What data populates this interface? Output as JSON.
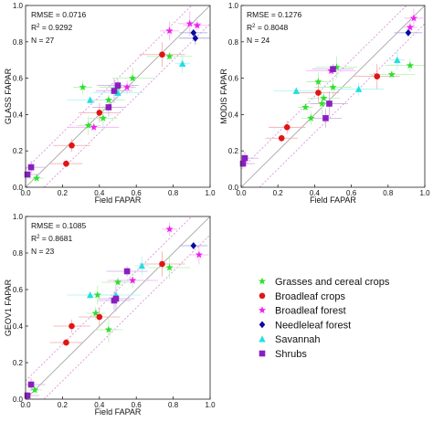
{
  "legend": [
    {
      "label": "Grasses and cereal crops",
      "color": "#2ee02e",
      "marker": "star"
    },
    {
      "label": "Broadleaf crops",
      "color": "#e01515",
      "marker": "circle"
    },
    {
      "label": "Broadleaf forest",
      "color": "#ee22ee",
      "marker": "star"
    },
    {
      "label": "Needleleaf forest",
      "color": "#0a0a9e",
      "marker": "diamond"
    },
    {
      "label": "Savannah",
      "color": "#20e0e0",
      "marker": "triangle"
    },
    {
      "label": "Shrubs",
      "color": "#8a1fbf",
      "marker": "square"
    }
  ],
  "chart_data": [
    {
      "type": "scatter",
      "xlabel": "Field  FAPAR",
      "ylabel": "GLASS  FAPAR",
      "xlim": [
        0,
        1
      ],
      "ylim": [
        0,
        1
      ],
      "xticks": [
        "0.0",
        "0.2",
        "0.4",
        "0.6",
        "0.8",
        "1.0"
      ],
      "yticks": [
        "0.0",
        "0.2",
        "0.4",
        "0.6",
        "0.8",
        "1.0"
      ],
      "stats": {
        "rmse": "RMSE = 0.0716",
        "r2_prefix": "R",
        "r2_value": "= 0.9292",
        "n": "N = 27"
      },
      "series": [
        {
          "name": "Grasses and cereal crops",
          "points": [
            [
              0.06,
              0.05
            ],
            [
              0.31,
              0.55
            ],
            [
              0.34,
              0.34
            ],
            [
              0.42,
              0.38
            ],
            [
              0.45,
              0.48
            ],
            [
              0.5,
              0.55
            ],
            [
              0.58,
              0.6
            ],
            [
              0.78,
              0.72
            ]
          ]
        },
        {
          "name": "Broadleaf crops",
          "points": [
            [
              0.22,
              0.13
            ],
            [
              0.25,
              0.23
            ],
            [
              0.4,
              0.41
            ],
            [
              0.74,
              0.73
            ]
          ]
        },
        {
          "name": "Broadleaf forest",
          "points": [
            [
              0.37,
              0.33
            ],
            [
              0.55,
              0.55
            ],
            [
              0.78,
              0.86
            ],
            [
              0.89,
              0.9
            ],
            [
              0.93,
              0.89
            ]
          ]
        },
        {
          "name": "Needleleaf forest",
          "points": [
            [
              0.91,
              0.85
            ],
            [
              0.92,
              0.82
            ]
          ]
        },
        {
          "name": "Savannah",
          "points": [
            [
              0.35,
              0.48
            ],
            [
              0.5,
              0.52
            ],
            [
              0.85,
              0.68
            ]
          ]
        },
        {
          "name": "Shrubs",
          "points": [
            [
              0.01,
              0.07
            ],
            [
              0.03,
              0.11
            ],
            [
              0.45,
              0.44
            ],
            [
              0.48,
              0.53
            ],
            [
              0.5,
              0.56
            ]
          ]
        }
      ]
    },
    {
      "type": "scatter",
      "xlabel": "Field  FAPAR",
      "ylabel": "MODIS  FAPAR",
      "xlim": [
        0,
        1
      ],
      "ylim": [
        0,
        1
      ],
      "xticks": [
        "0.0",
        "0.2",
        "0.4",
        "0.6",
        "0.8",
        "1.0"
      ],
      "yticks": [
        "0.0",
        "0.2",
        "0.4",
        "0.6",
        "0.8",
        "1.0"
      ],
      "stats": {
        "rmse": "RMSE = 0.1276",
        "r2_prefix": "R",
        "r2_value": "= 0.8048",
        "n": "N = 24"
      },
      "series": [
        {
          "name": "Grasses and cereal crops",
          "points": [
            [
              0.35,
              0.44
            ],
            [
              0.38,
              0.38
            ],
            [
              0.42,
              0.58
            ],
            [
              0.44,
              0.46
            ],
            [
              0.45,
              0.49
            ],
            [
              0.5,
              0.55
            ],
            [
              0.52,
              0.66
            ],
            [
              0.82,
              0.62
            ],
            [
              0.92,
              0.67
            ]
          ]
        },
        {
          "name": "Broadleaf crops",
          "points": [
            [
              0.22,
              0.27
            ],
            [
              0.25,
              0.33
            ],
            [
              0.42,
              0.52
            ],
            [
              0.74,
              0.61
            ]
          ]
        },
        {
          "name": "Broadleaf forest",
          "points": [
            [
              0.49,
              0.64
            ],
            [
              0.92,
              0.88
            ],
            [
              0.94,
              0.93
            ]
          ]
        },
        {
          "name": "Needleleaf forest",
          "points": [
            [
              0.91,
              0.85
            ]
          ]
        },
        {
          "name": "Savannah",
          "points": [
            [
              0.3,
              0.53
            ],
            [
              0.64,
              0.54
            ],
            [
              0.85,
              0.7
            ]
          ]
        },
        {
          "name": "Shrubs",
          "points": [
            [
              0.01,
              0.13
            ],
            [
              0.02,
              0.16
            ],
            [
              0.46,
              0.38
            ],
            [
              0.48,
              0.46
            ],
            [
              0.5,
              0.65
            ]
          ]
        }
      ]
    },
    {
      "type": "scatter",
      "xlabel": "Field  FAPAR",
      "ylabel": "GEOV1  FAPAR",
      "xlim": [
        0,
        1
      ],
      "ylim": [
        0,
        1
      ],
      "xticks": [
        "0.0",
        "0.2",
        "0.4",
        "0.6",
        "0.8",
        "1.0"
      ],
      "yticks": [
        "0.0",
        "0.2",
        "0.4",
        "0.6",
        "0.8",
        "1.0"
      ],
      "stats": {
        "rmse": "RMSE = 0.1085",
        "r2_prefix": "R",
        "r2_value": "= 0.8681",
        "n": "N = 23"
      },
      "series": [
        {
          "name": "Grasses and cereal crops",
          "points": [
            [
              0.05,
              0.05
            ],
            [
              0.38,
              0.47
            ],
            [
              0.39,
              0.57
            ],
            [
              0.45,
              0.38
            ],
            [
              0.5,
              0.64
            ],
            [
              0.58,
              0.65
            ],
            [
              0.78,
              0.72
            ]
          ]
        },
        {
          "name": "Broadleaf crops",
          "points": [
            [
              0.22,
              0.31
            ],
            [
              0.25,
              0.4
            ],
            [
              0.4,
              0.45
            ],
            [
              0.74,
              0.74
            ]
          ]
        },
        {
          "name": "Broadleaf forest",
          "points": [
            [
              0.58,
              0.65
            ],
            [
              0.78,
              0.93
            ],
            [
              0.94,
              0.79
            ]
          ]
        },
        {
          "name": "Needleleaf forest",
          "points": [
            [
              0.91,
              0.84
            ]
          ]
        },
        {
          "name": "Savannah",
          "points": [
            [
              0.35,
              0.57
            ],
            [
              0.49,
              0.57
            ],
            [
              0.63,
              0.73
            ]
          ]
        },
        {
          "name": "Shrubs",
          "points": [
            [
              0.01,
              0.02
            ],
            [
              0.03,
              0.08
            ],
            [
              0.48,
              0.54
            ],
            [
              0.49,
              0.55
            ],
            [
              0.55,
              0.7
            ]
          ]
        }
      ]
    }
  ]
}
